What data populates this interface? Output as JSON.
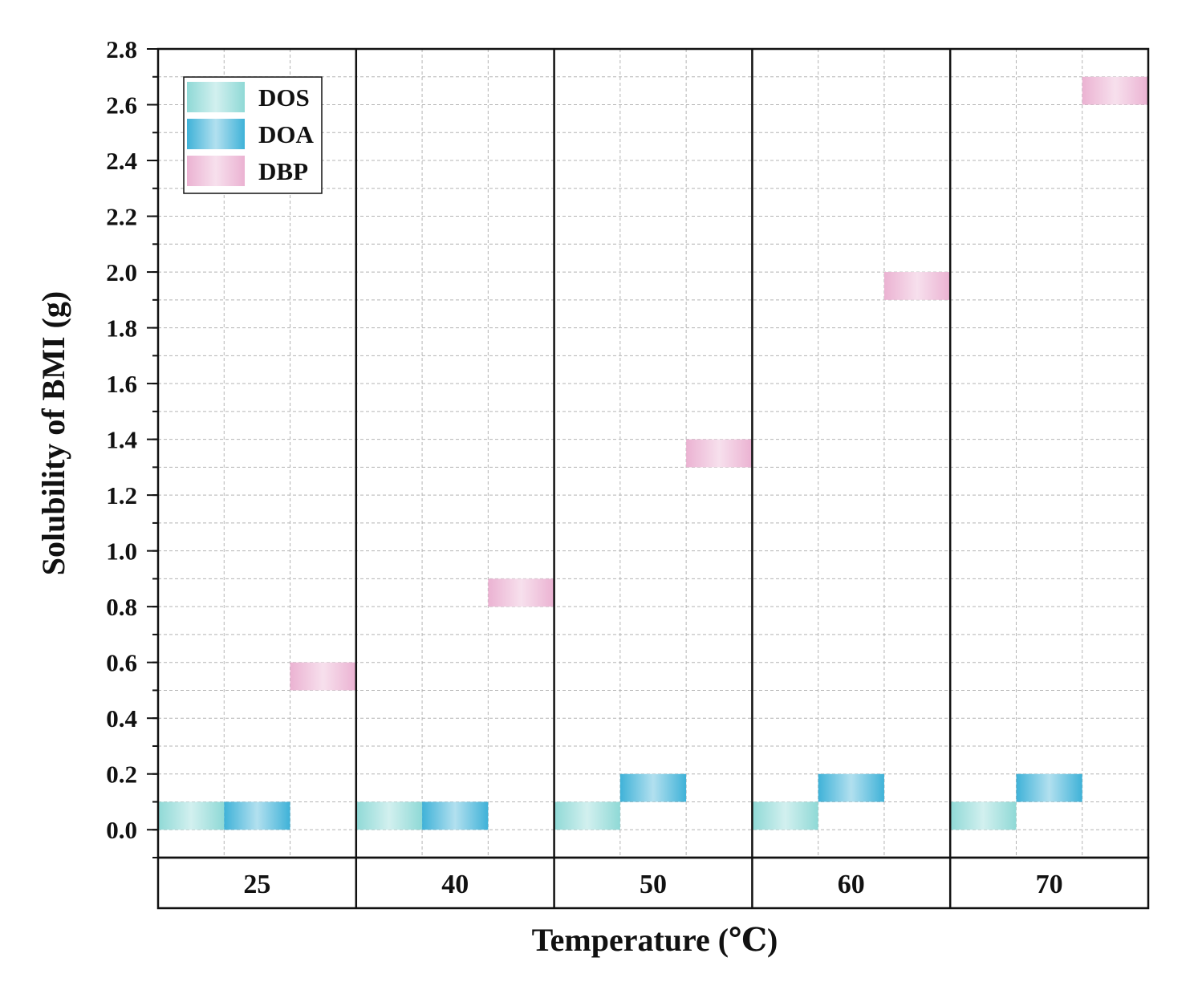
{
  "chart_data": {
    "type": "bar",
    "title": "",
    "xlabel": "Temperature (℃)",
    "ylabel": "Solubility of BMI (g)",
    "ylim": [
      -0.1,
      2.8
    ],
    "yticks": [
      0.0,
      0.2,
      0.4,
      0.6,
      0.8,
      1.0,
      1.2,
      1.4,
      1.6,
      1.8,
      2.0,
      2.2,
      2.4,
      2.6,
      2.8
    ],
    "ytick_labels": [
      "0.0",
      "0.2",
      "0.4",
      "0.6",
      "0.8",
      "1.0",
      "1.2",
      "1.4",
      "1.6",
      "1.8",
      "2.0",
      "2.2",
      "2.4",
      "2.6",
      "2.8"
    ],
    "categories": [
      "25",
      "40",
      "50",
      "60",
      "70"
    ],
    "grid": true,
    "legend_position": "top-left",
    "series": [
      {
        "name": "DOS",
        "low": [
          0.0,
          0.0,
          0.0,
          0.0,
          0.0
        ],
        "high": [
          0.1,
          0.1,
          0.1,
          0.1,
          0.1
        ],
        "color": "#8fd9d6"
      },
      {
        "name": "DOA",
        "low": [
          0.0,
          0.0,
          0.1,
          0.1,
          0.1
        ],
        "high": [
          0.1,
          0.1,
          0.2,
          0.2,
          0.2
        ],
        "color": "#3fb2d8"
      },
      {
        "name": "DBP",
        "low": [
          0.5,
          0.8,
          1.3,
          1.9,
          2.6
        ],
        "high": [
          0.6,
          0.9,
          1.4,
          2.0,
          2.7
        ],
        "color": "#ebb2d2"
      }
    ]
  }
}
